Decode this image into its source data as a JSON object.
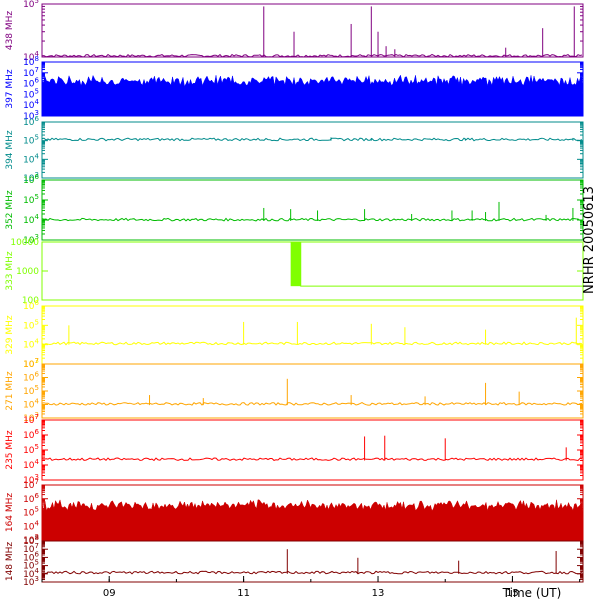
{
  "figure": {
    "side_label": "NRHR 20050613",
    "time_axis_label": "Time (UT)"
  },
  "chart_data": [
    {
      "type": "line",
      "freq_label": "438 MHz",
      "color": "#800080",
      "scale": "log",
      "ylim": [
        10000,
        100000
      ],
      "y_ticks": [
        {
          "value": 10000,
          "label": "10^4"
        },
        {
          "value": 100000,
          "label": "10^5"
        }
      ],
      "baseline": 10000,
      "spikes": [
        [
          11.3,
          90000
        ],
        [
          11.75,
          30000
        ],
        [
          12.6,
          42000
        ],
        [
          12.9,
          90000
        ],
        [
          13.0,
          30000
        ],
        [
          13.12,
          16000
        ],
        [
          13.25,
          14000
        ],
        [
          14.9,
          15000
        ],
        [
          15.45,
          35000
        ],
        [
          15.92,
          90000
        ]
      ],
      "fill": false
    },
    {
      "type": "area",
      "freq_label": "397 MHz",
      "color": "#0000ff",
      "scale": "log",
      "ylim": [
        1000,
        100000000
      ],
      "y_ticks": [
        {
          "value": 1000,
          "label": "10^3"
        },
        {
          "value": 10000,
          "label": "10^4"
        },
        {
          "value": 100000,
          "label": "10^5"
        },
        {
          "value": 1000000,
          "label": "10^6"
        },
        {
          "value": 10000000,
          "label": "10^7"
        },
        {
          "value": 100000000,
          "label": "10^8"
        }
      ],
      "baseline": 300000,
      "fill": true
    },
    {
      "type": "line",
      "freq_label": "394 MHz",
      "color": "#008b8b",
      "scale": "log",
      "ylim": [
        1000,
        1000000
      ],
      "y_ticks": [
        {
          "value": 1000,
          "label": "10^3"
        },
        {
          "value": 10000,
          "label": "10^4"
        },
        {
          "value": 100000,
          "label": "10^5"
        },
        {
          "value": 1000000,
          "label": "10^6"
        }
      ],
      "baseline": 100000,
      "spikes": [
        [
          12.3,
          150000
        ],
        [
          12.9,
          140000
        ],
        [
          14.3,
          130000
        ],
        [
          15.9,
          140000
        ]
      ],
      "fill": false
    },
    {
      "type": "line",
      "freq_label": "352 MHz",
      "color": "#00bb00",
      "scale": "log",
      "ylim": [
        1000,
        1000000
      ],
      "y_ticks": [
        {
          "value": 1000,
          "label": "10^3"
        },
        {
          "value": 10000,
          "label": "10^4"
        },
        {
          "value": 100000,
          "label": "10^5"
        },
        {
          "value": 1000000,
          "label": "10^6"
        }
      ],
      "baseline": 9000,
      "spikes": [
        [
          11.3,
          40000
        ],
        [
          11.7,
          35000
        ],
        [
          12.1,
          30000
        ],
        [
          12.8,
          35000
        ],
        [
          13.5,
          20000
        ],
        [
          14.1,
          30000
        ],
        [
          14.4,
          30000
        ],
        [
          14.6,
          25000
        ],
        [
          14.8,
          80000
        ],
        [
          15.5,
          18000
        ],
        [
          15.9,
          40000
        ]
      ],
      "fill": false
    },
    {
      "type": "line",
      "freq_label": "333 MHz",
      "color": "#80ff00",
      "scale": "log",
      "ylim": [
        100,
        10000
      ],
      "y_ticks": [
        {
          "value": 100,
          "label": "100"
        },
        {
          "value": 1000,
          "label": "1000"
        },
        {
          "value": 10000,
          "label": "10000"
        }
      ],
      "baseline": 300,
      "step": {
        "high_value": 10000,
        "low_value": 300,
        "until": 11.85
      },
      "burst_window": [
        11.7,
        11.85
      ],
      "fill": false
    },
    {
      "type": "line",
      "freq_label": "329 MHz",
      "color": "#ffff00",
      "scale": "log",
      "ylim": [
        1000,
        1000000
      ],
      "y_ticks": [
        {
          "value": 1000,
          "label": "10^3"
        },
        {
          "value": 10000,
          "label": "10^4"
        },
        {
          "value": 100000,
          "label": "10^5"
        },
        {
          "value": 1000000,
          "label": "10^6"
        }
      ],
      "baseline": 10000,
      "spikes": [
        [
          8.4,
          100000
        ],
        [
          11.0,
          150000
        ],
        [
          11.8,
          150000
        ],
        [
          12.9,
          120000
        ],
        [
          13.4,
          80000
        ],
        [
          14.6,
          60000
        ],
        [
          15.95,
          250000
        ]
      ],
      "fill": false
    },
    {
      "type": "line",
      "freq_label": "271 MHz",
      "color": "#ffa500",
      "scale": "log",
      "ylim": [
        1000,
        10000000
      ],
      "y_ticks": [
        {
          "value": 1000,
          "label": "10^3"
        },
        {
          "value": 10000,
          "label": "10^4"
        },
        {
          "value": 100000,
          "label": "10^5"
        },
        {
          "value": 1000000,
          "label": "10^6"
        },
        {
          "value": 10000000,
          "label": "10^7"
        }
      ],
      "baseline": 9000,
      "spikes": [
        [
          9.6,
          50000
        ],
        [
          10.4,
          30000
        ],
        [
          11.65,
          800000
        ],
        [
          12.6,
          50000
        ],
        [
          13.7,
          40000
        ],
        [
          14.6,
          400000
        ],
        [
          15.1,
          90000
        ]
      ],
      "fill": false
    },
    {
      "type": "line",
      "freq_label": "235 MHz",
      "color": "#ff0000",
      "scale": "log",
      "ylim": [
        1000,
        10000000
      ],
      "y_ticks": [
        {
          "value": 1000,
          "label": "10^3"
        },
        {
          "value": 10000,
          "label": "10^4"
        },
        {
          "value": 100000,
          "label": "10^5"
        },
        {
          "value": 1000000,
          "label": "10^6"
        },
        {
          "value": 10000000,
          "label": "10^7"
        }
      ],
      "baseline": 20000,
      "spikes": [
        [
          12.8,
          800000
        ],
        [
          13.1,
          900000
        ],
        [
          14.0,
          600000
        ],
        [
          15.8,
          150000
        ]
      ],
      "fill": false
    },
    {
      "type": "area",
      "freq_label": "164 MHz",
      "color": "#cc0000",
      "scale": "log",
      "ylim": [
        1000,
        10000000
      ],
      "y_ticks": [
        {
          "value": 1000,
          "label": "10^3"
        },
        {
          "value": 10000,
          "label": "10^4"
        },
        {
          "value": 100000,
          "label": "10^5"
        },
        {
          "value": 1000000,
          "label": "10^6"
        },
        {
          "value": 10000000,
          "label": "10^7"
        }
      ],
      "baseline": 80000,
      "fill": true
    },
    {
      "type": "line",
      "freq_label": "148 MHz",
      "color": "#800000",
      "scale": "log",
      "ylim": [
        1000,
        100000000
      ],
      "y_ticks": [
        {
          "value": 1000,
          "label": "10^3"
        },
        {
          "value": 10000,
          "label": "10^4"
        },
        {
          "value": 100000,
          "label": "10^5"
        },
        {
          "value": 1000000,
          "label": "10^6"
        },
        {
          "value": 10000000,
          "label": "10^7"
        },
        {
          "value": 100000000,
          "label": "10^8"
        }
      ],
      "baseline": 10000,
      "spikes": [
        [
          11.65,
          10000000
        ],
        [
          12.7,
          900000
        ],
        [
          14.2,
          400000
        ],
        [
          15.65,
          6000000
        ]
      ],
      "fill": false
    }
  ],
  "x_axis": {
    "range": [
      8.0,
      16.05
    ],
    "ticks": [
      {
        "value": 9,
        "label": "09"
      },
      {
        "value": 11,
        "label": "11"
      },
      {
        "value": 13,
        "label": "13"
      },
      {
        "value": 15,
        "label": "15"
      }
    ]
  }
}
